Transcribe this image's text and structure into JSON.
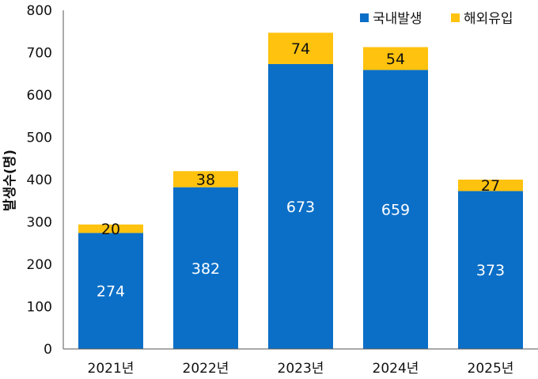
{
  "chart_data": {
    "type": "bar",
    "stacked": true,
    "categories": [
      "2021년",
      "2022년",
      "2023년",
      "2024년",
      "2025년"
    ],
    "series": [
      {
        "name": "국내발생",
        "color": "#0B6FC7",
        "values": [
          274,
          382,
          673,
          659,
          373
        ]
      },
      {
        "name": "해외유입",
        "color": "#FFC20E",
        "values": [
          20,
          38,
          74,
          54,
          27
        ]
      }
    ],
    "ylabel": "발생수(명)",
    "xlabel": "",
    "ylim": [
      0,
      800
    ],
    "yticks": [
      0,
      100,
      200,
      300,
      400,
      500,
      600,
      700,
      800
    ],
    "grid": false,
    "legend": "top-right"
  }
}
